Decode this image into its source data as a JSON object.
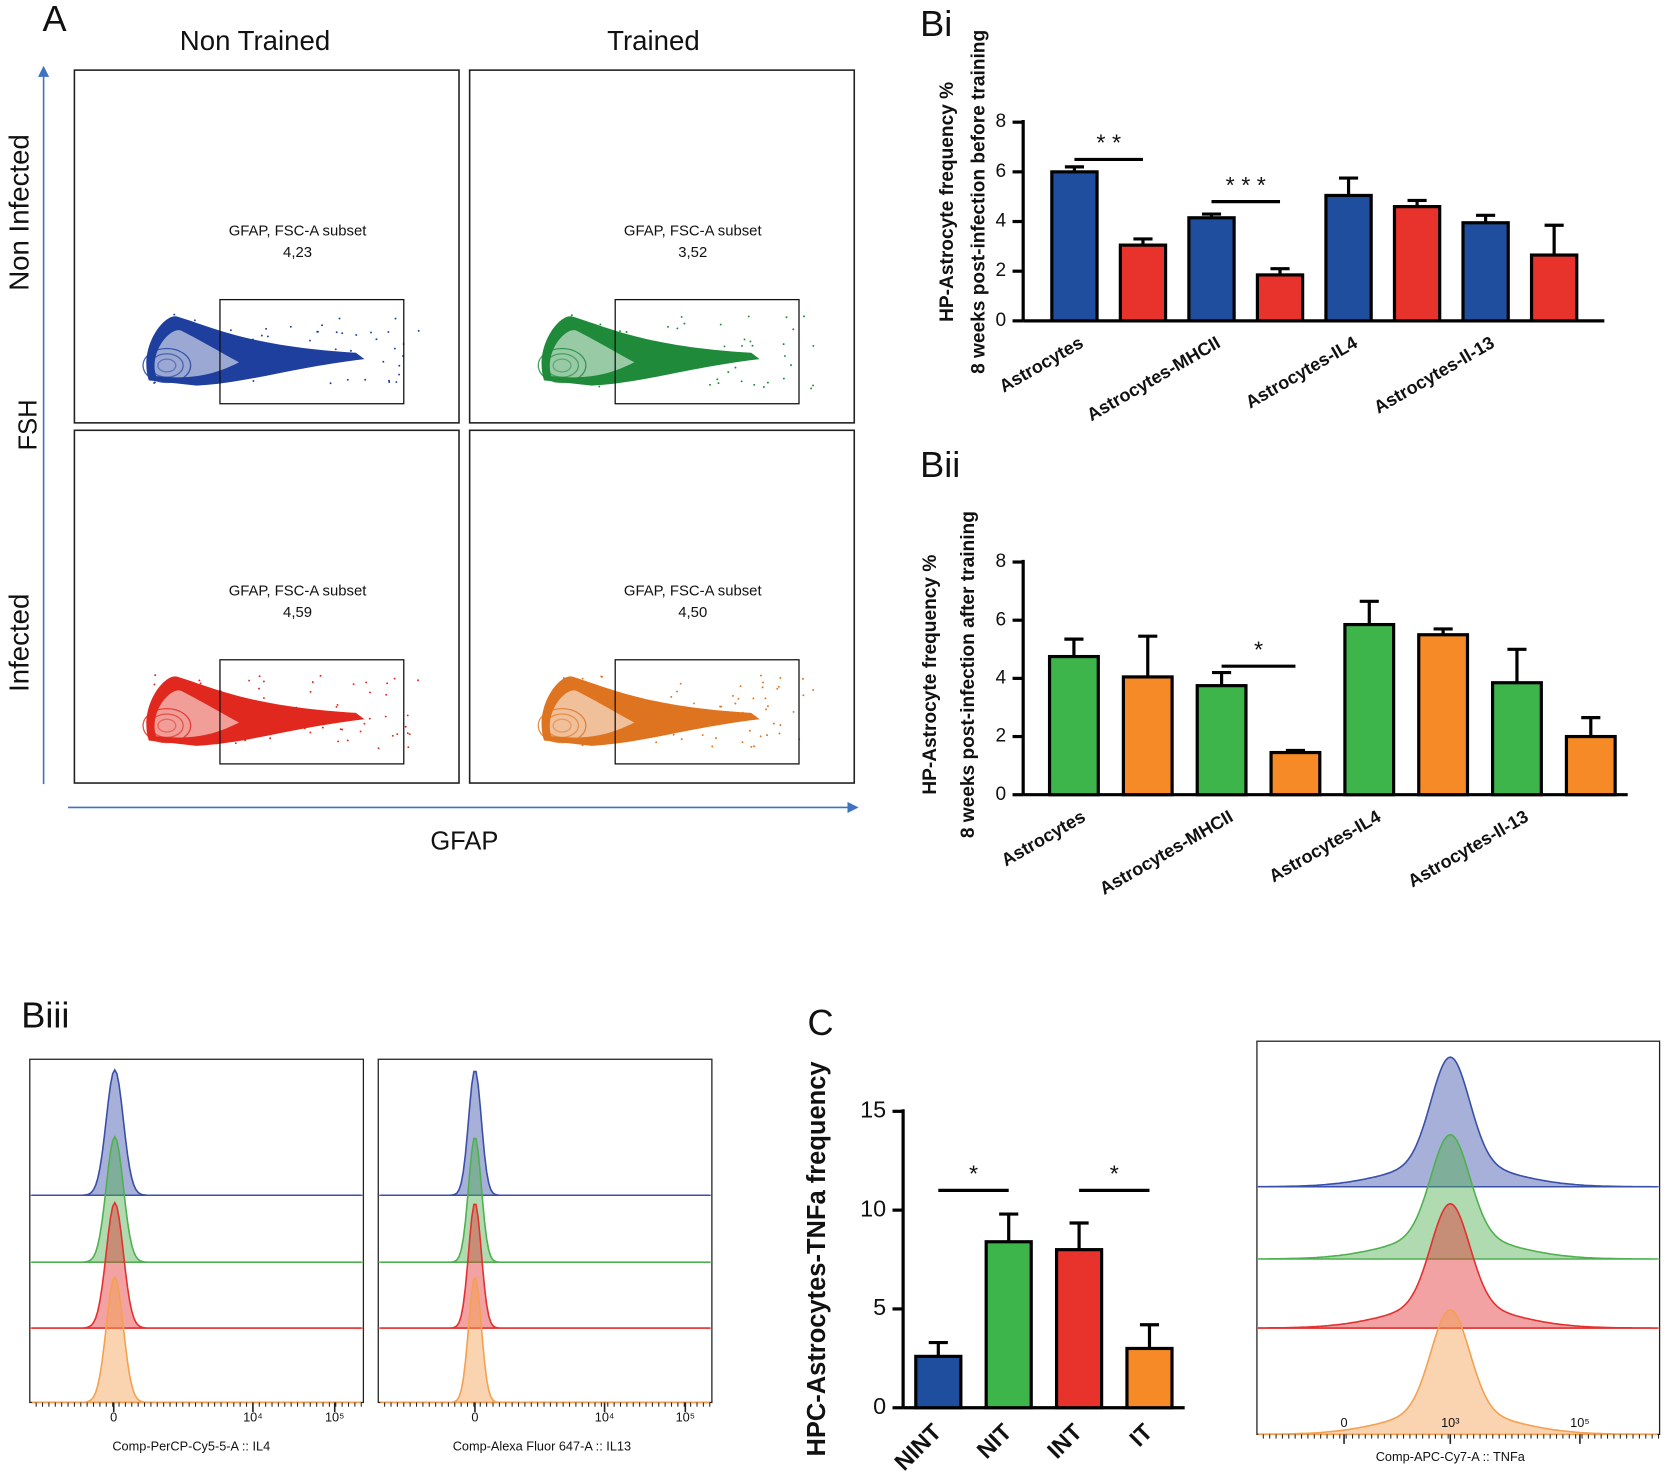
{
  "chart_data": [
    {
      "type": "bar",
      "title": "Bi",
      "ylabel": [
        "HP-Astrocyte frequency %",
        "8 weeks post-infection before training"
      ],
      "categories": [
        "Astrocytes",
        "Astrocytes-MHCII",
        "Astrocytes-IL4",
        "Astrocytes-Il-13"
      ],
      "series": [
        {
          "color": "#1f4e9e",
          "values": [
            6.0,
            4.15,
            5.05,
            3.95
          ],
          "errors": [
            0.2,
            0.15,
            0.7,
            0.3
          ]
        },
        {
          "color": "#e8322c",
          "values": [
            3.05,
            1.85,
            4.6,
            2.65
          ],
          "errors": [
            0.25,
            0.25,
            0.25,
            1.2
          ]
        }
      ],
      "ylim": [
        0,
        8
      ],
      "yticks": [
        0,
        2,
        4,
        6,
        8
      ],
      "annotations": [
        {
          "text": "* *",
          "category": 0,
          "y": 6.5
        },
        {
          "text": "* * *",
          "category": 1,
          "y": 4.8
        }
      ]
    },
    {
      "type": "bar",
      "title": "Bii",
      "ylabel": [
        "HP-Astrocyte frequency %",
        "8 weeks post-infection after training"
      ],
      "categories": [
        "Astrocytes",
        "Astrocytes-MHCII",
        "Astrocytes-IL4",
        "Astrocytes-Il-13"
      ],
      "series": [
        {
          "color": "#3db54a",
          "values": [
            4.75,
            3.75,
            5.85,
            3.85
          ],
          "errors": [
            0.6,
            0.45,
            0.8,
            1.15
          ]
        },
        {
          "color": "#f58a26",
          "values": [
            4.05,
            1.45,
            5.5,
            2.0
          ],
          "errors": [
            1.4,
            0.07,
            0.2,
            0.65
          ]
        }
      ],
      "ylim": [
        0,
        8
      ],
      "yticks": [
        0,
        2,
        4,
        6,
        8
      ],
      "annotations": [
        {
          "text": "*",
          "category": 1,
          "y": 4.42
        }
      ]
    },
    {
      "type": "bar",
      "title": "C",
      "ylabel": [
        "HPC-Astrocytes-TNFa frequency"
      ],
      "categories": [
        "NINT",
        "NIT",
        "INT",
        "IT"
      ],
      "series": [
        {
          "colors": [
            "#1f4e9e",
            "#3db54a",
            "#e8322c",
            "#f58a26"
          ],
          "values": [
            2.6,
            8.4,
            8.0,
            3.0
          ],
          "errors": [
            0.7,
            1.4,
            1.35,
            1.2
          ]
        }
      ],
      "ylim": [
        0,
        15
      ],
      "yticks": [
        0,
        5,
        10,
        15
      ],
      "annotations": [
        {
          "text": "*",
          "between": [
            0,
            1
          ],
          "y": 11.0
        },
        {
          "text": "*",
          "between": [
            2,
            3
          ],
          "y": 11.0
        }
      ]
    }
  ],
  "panel_a": {
    "label": "A",
    "columns": [
      "Non Trained",
      "Trained"
    ],
    "rows": [
      "Non Infected",
      "Infected"
    ],
    "y_axis": "FSH",
    "x_axis": "GFAP",
    "plots": [
      {
        "gate": "GFAP, FSC-A subset",
        "value": "4,23"
      },
      {
        "gate": "GFAP, FSC-A subset",
        "value": "3,52"
      },
      {
        "gate": "GFAP, FSC-A subset",
        "value": "4,59"
      },
      {
        "gate": "GFAP, FSC-A subset",
        "value": "4,50"
      }
    ]
  },
  "panel_biii": {
    "label": "Biii",
    "plots": [
      {
        "xlabel": "Comp-PerCP-Cy5-5-A :: IL4",
        "ticks": [
          "0",
          "10⁴",
          "10⁵"
        ]
      },
      {
        "xlabel": "Comp-Alexa Fluor 647-A :: IL13",
        "ticks": [
          "0",
          "10⁴",
          "10⁵"
        ]
      }
    ]
  },
  "panel_c_hist": {
    "xlabel": "Comp-APC-Cy7-A :: TNFa",
    "ticks": [
      "0",
      "10³",
      "10⁵"
    ]
  }
}
